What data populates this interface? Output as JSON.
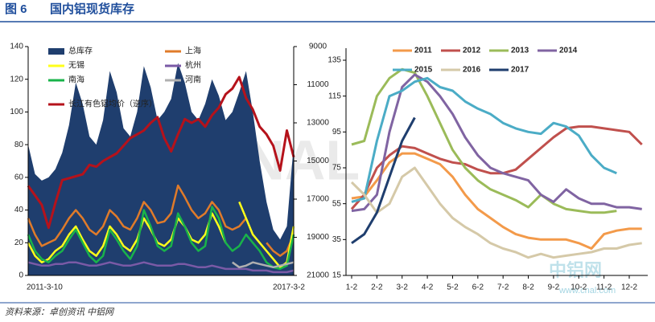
{
  "header": {
    "figure": "图 6",
    "title": "国内铝现货库存"
  },
  "source": "资料来源：卓创资讯   中铝网",
  "watermark": {
    "logo": "CNAL",
    "brand": "中铝网",
    "url": "www.cnal.com"
  },
  "chart_data": [
    {
      "type": "combo",
      "categories": [
        "2011-3-10",
        null,
        null,
        null,
        null,
        null,
        null,
        null,
        null,
        null,
        null,
        null,
        null,
        null,
        null,
        null,
        null,
        null,
        null,
        null,
        null,
        null,
        null,
        null,
        null,
        null,
        null,
        null,
        null,
        null,
        null,
        null,
        null,
        null,
        null,
        null,
        null,
        null,
        null,
        "2017-3-2"
      ],
      "ylim": [
        0,
        140
      ],
      "yticks": [
        0,
        20,
        40,
        60,
        80,
        100,
        120,
        140
      ],
      "y2lim": [
        21000,
        9000
      ],
      "y2ticks": [
        9000,
        11000,
        13000,
        15000,
        17000,
        19000,
        21000
      ],
      "series": [
        {
          "name": "总库存",
          "kind": "area",
          "color": "#1f3e6e",
          "values": [
            80,
            62,
            58,
            60,
            65,
            75,
            92,
            118,
            105,
            85,
            80,
            95,
            125,
            112,
            90,
            85,
            100,
            128,
            115,
            95,
            100,
            108,
            130,
            118,
            100,
            95,
            105,
            120,
            110,
            95,
            100,
            112,
            125,
            100,
            70,
            45,
            28,
            22,
            30,
            80
          ]
        },
        {
          "name": "上海",
          "kind": "line",
          "color": "#e07b2a",
          "values": [
            35,
            25,
            18,
            20,
            22,
            28,
            35,
            40,
            35,
            28,
            25,
            30,
            40,
            36,
            30,
            28,
            35,
            45,
            40,
            32,
            33,
            38,
            55,
            48,
            40,
            35,
            38,
            45,
            40,
            30,
            28,
            30,
            35,
            null,
            null,
            20,
            15,
            12,
            15,
            25
          ]
        },
        {
          "name": "无锡",
          "kind": "line",
          "color": "#ffff1a",
          "values": [
            20,
            12,
            8,
            10,
            15,
            18,
            25,
            30,
            22,
            15,
            12,
            18,
            30,
            25,
            18,
            15,
            22,
            35,
            28,
            20,
            18,
            22,
            35,
            30,
            22,
            20,
            25,
            38,
            30,
            20,
            null,
            45,
            35,
            25,
            20,
            15,
            10,
            5,
            8,
            30
          ]
        },
        {
          "name": "杭州",
          "kind": "line",
          "color": "#7a5aa6",
          "values": [
            8,
            7,
            6,
            6,
            7,
            7,
            8,
            8,
            7,
            6,
            6,
            7,
            8,
            7,
            6,
            6,
            7,
            8,
            7,
            6,
            6,
            6,
            7,
            7,
            6,
            5,
            5,
            6,
            5,
            4,
            4,
            4,
            4,
            3,
            3,
            3,
            2,
            2,
            2,
            3
          ]
        },
        {
          "name": "南海",
          "kind": "line",
          "color": "#19b34a",
          "values": [
            25,
            15,
            10,
            8,
            12,
            15,
            22,
            28,
            20,
            12,
            8,
            12,
            28,
            22,
            15,
            10,
            18,
            40,
            30,
            18,
            15,
            18,
            38,
            30,
            20,
            15,
            18,
            42,
            35,
            20,
            15,
            18,
            25,
            20,
            15,
            8,
            5,
            4,
            6,
            25
          ]
        },
        {
          "name": "河南",
          "kind": "line",
          "color": "#b0b0b0",
          "values": [
            null,
            null,
            null,
            null,
            null,
            null,
            null,
            null,
            null,
            null,
            null,
            null,
            null,
            null,
            null,
            null,
            null,
            null,
            null,
            null,
            null,
            null,
            null,
            null,
            null,
            null,
            null,
            null,
            null,
            null,
            8,
            5,
            6,
            8,
            7,
            6,
            5,
            6,
            7,
            8
          ]
        },
        {
          "name": "长江有色铝均价（逆序）",
          "kind": "line",
          "axis": "y2",
          "color": "#b5121b",
          "values": [
            16300,
            16800,
            17300,
            18500,
            17200,
            16000,
            15900,
            15800,
            15700,
            15200,
            15300,
            15000,
            14800,
            14600,
            14200,
            13800,
            13600,
            13400,
            13000,
            12700,
            13800,
            14500,
            13600,
            12800,
            13000,
            12800,
            13200,
            12600,
            12200,
            11500,
            11200,
            10600,
            11700,
            12300,
            13200,
            13600,
            14200,
            15500,
            13400,
            14800
          ]
        }
      ]
    },
    {
      "type": "line",
      "categories": [
        "1-2",
        null,
        "2-2",
        null,
        "3-2",
        null,
        "4-2",
        null,
        "5-2",
        null,
        "6-2",
        null,
        "7-2",
        null,
        "8-2",
        null,
        "9-2",
        null,
        "10-2",
        null,
        "11-2",
        null,
        "12-2",
        null
      ],
      "ylim": [
        15,
        135
      ],
      "yticks": [
        15,
        35,
        55,
        75,
        95,
        115,
        135
      ],
      "series": [
        {
          "name": "2011",
          "color": "#f39a4a",
          "values": [
            58,
            59,
            68,
            78,
            83,
            83,
            80,
            77,
            70,
            60,
            52,
            47,
            42,
            38,
            36,
            35,
            35,
            35,
            33,
            30,
            38,
            40,
            41,
            41
          ]
        },
        {
          "name": "2012",
          "color": "#c0504d",
          "values": [
            52,
            60,
            75,
            82,
            87,
            86,
            83,
            80,
            78,
            77,
            74,
            72,
            72,
            74,
            80,
            86,
            92,
            97,
            98,
            98,
            97,
            96,
            95,
            88
          ]
        },
        {
          "name": "2013",
          "color": "#9bbb59",
          "values": [
            88,
            90,
            115,
            125,
            130,
            128,
            115,
            100,
            85,
            75,
            68,
            63,
            60,
            57,
            53,
            60,
            55,
            52,
            51,
            50,
            50,
            51,
            null,
            null
          ]
        },
        {
          "name": "2014",
          "color": "#8064a2",
          "values": [
            51,
            52,
            60,
            95,
            120,
            127,
            123,
            115,
            105,
            92,
            82,
            75,
            72,
            70,
            68,
            60,
            56,
            63,
            58,
            55,
            55,
            53,
            53,
            52
          ]
        },
        {
          "name": "2015",
          "color": "#4bacc6",
          "values": [
            56,
            58,
            90,
            115,
            118,
            123,
            125,
            120,
            118,
            112,
            108,
            105,
            100,
            97,
            95,
            94,
            100,
            98,
            93,
            82,
            75,
            72,
            null,
            null
          ]
        },
        {
          "name": "2016",
          "color": "#d5c9a8",
          "values": [
            67,
            60,
            50,
            55,
            70,
            75,
            65,
            55,
            47,
            42,
            38,
            33,
            30,
            28,
            25,
            27,
            25,
            26,
            27,
            28,
            30,
            30,
            32,
            33
          ]
        },
        {
          "name": "2017",
          "color": "#1f3e6e",
          "values": [
            33,
            38,
            50,
            70,
            90,
            103,
            null,
            null,
            null,
            null,
            null,
            null,
            null,
            null,
            null,
            null,
            null,
            null,
            null,
            null,
            null,
            null,
            null,
            null
          ]
        }
      ]
    }
  ]
}
